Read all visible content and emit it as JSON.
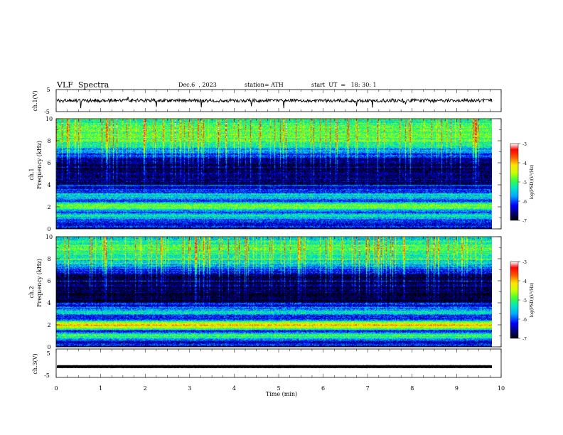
{
  "header": {
    "title": "VLF  Spectra",
    "date": "Dec.6  , 2023",
    "station": "station= ATH",
    "start": "start  UT  =   18: 30: 1"
  },
  "colors": {
    "background": "#ffffff",
    "ink": "#000000",
    "colormap": [
      "#000000",
      "#00008b",
      "#0000ff",
      "#00bfff",
      "#00ff7f",
      "#aaff00",
      "#ffff00",
      "#ff8800",
      "#ff0000",
      "#ffffff"
    ]
  },
  "chart_data": [
    {
      "type": "line",
      "name": "ch1-waveform",
      "ylabel": "ch.1(V)",
      "yticks": [
        "5",
        "-5"
      ],
      "ylim": [
        -5,
        5
      ],
      "xlim": [
        0,
        10
      ],
      "baseline": 0,
      "noise_amplitude": 0.8
    },
    {
      "type": "heatmap",
      "name": "ch1-spectrogram",
      "ylabel_top": "ch.1",
      "ylabel": "Frequency (kHz)",
      "yticks": [
        "0",
        "2",
        "4",
        "6",
        "8",
        "10"
      ],
      "ylim": [
        0,
        10
      ],
      "xlim": [
        0,
        9.8
      ],
      "colorbar": {
        "label": "log(PSD)(V²/Hz)",
        "ticks": [
          "-3",
          "-4",
          "-5",
          "-6",
          "-7"
        ],
        "range": [
          -7,
          -3
        ]
      },
      "bands_khz": [
        {
          "center": 2.1,
          "level": -4.7
        },
        {
          "center": 1.2,
          "level": -5.2
        },
        {
          "center": 3.0,
          "level": -5.4
        },
        {
          "center": 8.5,
          "level": -5.0
        }
      ],
      "background_level": -6.2
    },
    {
      "type": "heatmap",
      "name": "ch2-spectrogram",
      "ylabel_top": "ch.2",
      "ylabel": "Frequency (kHz)",
      "yticks": [
        "0",
        "2",
        "4",
        "6",
        "8",
        "10"
      ],
      "ylim": [
        0,
        10
      ],
      "xlim": [
        0,
        9.8
      ],
      "colorbar": {
        "label": "log(PSD)(V²/Hz)",
        "ticks": [
          "-3",
          "-4",
          "-5",
          "-6",
          "-7"
        ],
        "range": [
          -7,
          -3
        ]
      },
      "bands_khz": [
        {
          "center": 2.0,
          "level": -4.2
        },
        {
          "center": 1.0,
          "level": -5.0
        },
        {
          "center": 3.2,
          "level": -5.3
        },
        {
          "center": 8.6,
          "level": -5.2
        }
      ],
      "background_level": -6.3
    },
    {
      "type": "line",
      "name": "ch3-waveform",
      "ylabel": "ch.3(V)",
      "yticks": [
        "5",
        "-5"
      ],
      "ylim": [
        -5,
        5
      ],
      "xlim": [
        0,
        10
      ],
      "baseline": -1.2,
      "noise_amplitude": 0.05
    }
  ],
  "xaxis": {
    "label": "Time  (min)",
    "ticks": [
      "0",
      "1",
      "2",
      "3",
      "4",
      "5",
      "6",
      "7",
      "8",
      "9",
      "10"
    ],
    "range": [
      0,
      10
    ]
  }
}
